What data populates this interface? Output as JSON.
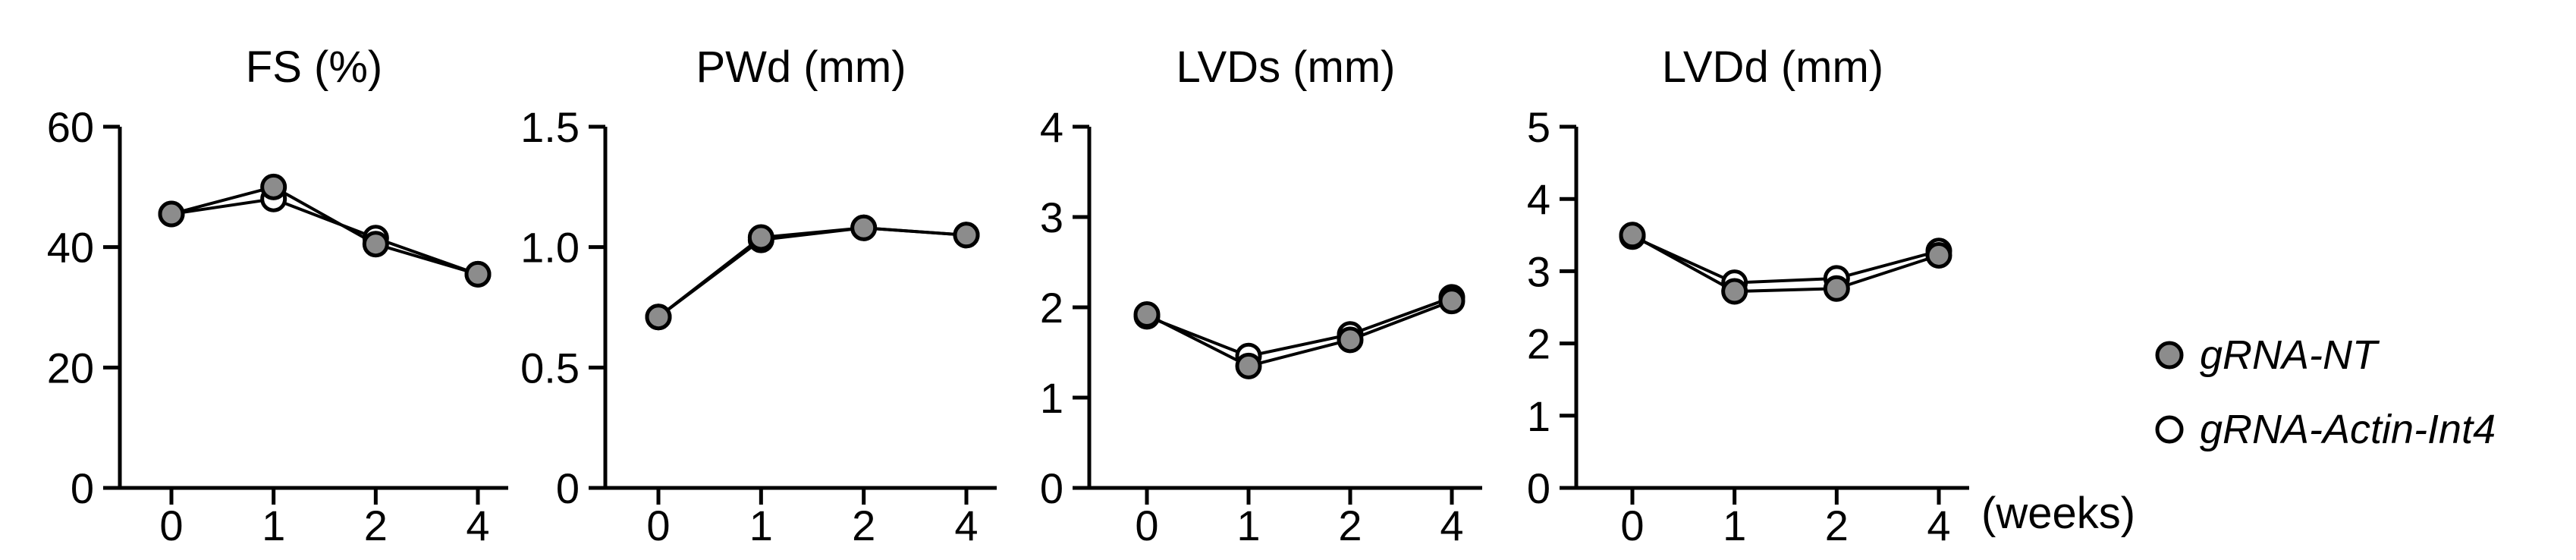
{
  "chart_data": [
    {
      "type": "line",
      "title": "FS (%)",
      "categories": [
        "0",
        "1",
        "2",
        "4"
      ],
      "ylim": [
        0,
        60
      ],
      "yticks": [
        "0",
        "20",
        "40",
        "60"
      ],
      "series": [
        {
          "name": "gRNA-NT",
          "values": [
            45.5,
            50,
            40.5,
            35.5
          ]
        },
        {
          "name": "gRNA-Actin-Int4",
          "values": [
            45.5,
            48,
            41.5,
            35.5
          ]
        }
      ]
    },
    {
      "type": "line",
      "title": "PWd (mm)",
      "categories": [
        "0",
        "1",
        "2",
        "4"
      ],
      "ylim": [
        0,
        1.5
      ],
      "yticks": [
        "0",
        "0.5",
        "1.0",
        "1.5"
      ],
      "series": [
        {
          "name": "gRNA-NT",
          "values": [
            0.71,
            1.04,
            1.08,
            1.05
          ]
        },
        {
          "name": "gRNA-Actin-Int4",
          "values": [
            0.71,
            1.03,
            1.08,
            1.05
          ]
        }
      ]
    },
    {
      "type": "line",
      "title": "LVDs (mm)",
      "categories": [
        "0",
        "1",
        "2",
        "4"
      ],
      "ylim": [
        0,
        4
      ],
      "yticks": [
        "0",
        "1",
        "2",
        "3",
        "4"
      ],
      "series": [
        {
          "name": "gRNA-NT",
          "values": [
            1.92,
            1.35,
            1.64,
            2.07
          ]
        },
        {
          "name": "gRNA-Actin-Int4",
          "values": [
            1.9,
            1.46,
            1.7,
            2.11
          ]
        }
      ]
    },
    {
      "type": "line",
      "title": "LVDd (mm)",
      "categories": [
        "0",
        "1",
        "2",
        "4"
      ],
      "ylim": [
        0,
        5
      ],
      "yticks": [
        "0",
        "1",
        "2",
        "3",
        "4",
        "5"
      ],
      "series": [
        {
          "name": "gRNA-NT",
          "values": [
            3.5,
            2.72,
            2.76,
            3.22
          ]
        },
        {
          "name": "gRNA-Actin-Int4",
          "values": [
            3.48,
            2.84,
            2.9,
            3.28
          ]
        }
      ]
    }
  ],
  "xaxis_unit": "(weeks)",
  "legend": {
    "placement": "right",
    "items": [
      {
        "label": "gRNA-NT",
        "marker": "filled-circle",
        "color": "#8c8c8c"
      },
      {
        "label": "gRNA-Actin-Int4",
        "marker": "open-circle",
        "color": "#ffffff"
      }
    ]
  },
  "colors": {
    "series_fill": [
      "#8c8c8c",
      "#ffffff"
    ],
    "stroke": "#000000"
  }
}
